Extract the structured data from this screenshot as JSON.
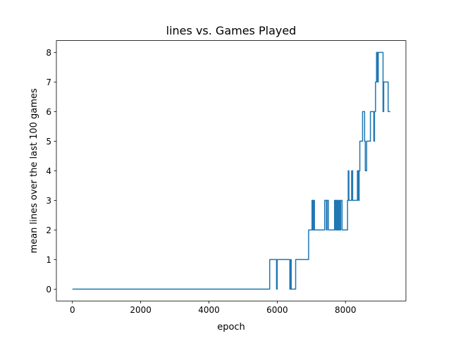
{
  "chart_data": {
    "type": "line",
    "title": "lines vs. Games Played",
    "xlabel": "epoch",
    "ylabel": "mean lines over the last 100 games",
    "xlim": [
      -470,
      9770
    ],
    "ylim": [
      -0.4,
      8.4
    ],
    "x_ticks": [
      0,
      2000,
      4000,
      6000,
      8000
    ],
    "x_tick_labels": [
      "0",
      "2000",
      "4000",
      "6000",
      "8000"
    ],
    "y_ticks": [
      0,
      1,
      2,
      3,
      4,
      5,
      6,
      7,
      8
    ],
    "y_tick_labels": [
      "0",
      "1",
      "2",
      "3",
      "4",
      "5",
      "6",
      "7",
      "8"
    ],
    "grid": false,
    "line_color": "#1f77b4",
    "series": [
      {
        "x": [
          0,
          5780,
          5780,
          5980,
          5980,
          6000,
          6000,
          6370,
          6370,
          6400,
          6400,
          6410,
          6410,
          6540,
          6540,
          6920,
          6920,
          7020,
          7020,
          7040,
          7040,
          7050,
          7050,
          7070,
          7070,
          7080,
          7080,
          7090,
          7090,
          7390,
          7390,
          7440,
          7440,
          7460,
          7460,
          7500,
          7500,
          7680,
          7680,
          7710,
          7710,
          7730,
          7730,
          7750,
          7750,
          7770,
          7770,
          7790,
          7790,
          7810,
          7810,
          7830,
          7830,
          7860,
          7860,
          7900,
          7900,
          8060,
          8060,
          8080,
          8080,
          8100,
          8100,
          8180,
          8180,
          8210,
          8210,
          8350,
          8350,
          8380,
          8380,
          8400,
          8400,
          8420,
          8420,
          8500,
          8500,
          8560,
          8560,
          8580,
          8580,
          8620,
          8620,
          8730,
          8730,
          8830,
          8830,
          8850,
          8850,
          8880,
          8880,
          8910,
          8910,
          8940,
          8940,
          8960,
          8960,
          9100,
          9100,
          9120,
          9120,
          9250,
          9250,
          9310
        ],
        "y": [
          0,
          0,
          1,
          1,
          0,
          0,
          1,
          1,
          0,
          0,
          1,
          1,
          0,
          0,
          1,
          1,
          2,
          2,
          3,
          3,
          2,
          2,
          3,
          3,
          2,
          2,
          3,
          3,
          2,
          2,
          3,
          3,
          2,
          2,
          3,
          3,
          2,
          2,
          3,
          3,
          2,
          2,
          3,
          3,
          2,
          2,
          3,
          3,
          2,
          2,
          3,
          3,
          2,
          2,
          3,
          3,
          2,
          2,
          3,
          3,
          4,
          4,
          3,
          3,
          4,
          4,
          3,
          3,
          4,
          4,
          3,
          3,
          4,
          4,
          5,
          5,
          6,
          6,
          5,
          5,
          4,
          4,
          5,
          5,
          6,
          6,
          5,
          5,
          6,
          6,
          7,
          7,
          8,
          8,
          7,
          7,
          8,
          8,
          6,
          6,
          7,
          7,
          6,
          6
        ]
      }
    ]
  }
}
